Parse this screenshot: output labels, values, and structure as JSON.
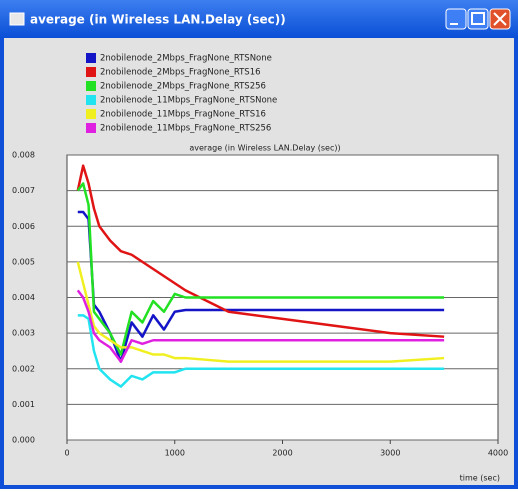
{
  "window_title": "average (in Wireless LAN.Delay (sec))",
  "chart_data": {
    "type": "line",
    "title": "average (in Wireless LAN.Delay (sec))",
    "xlabel": "time (sec)",
    "x": [
      100,
      150,
      200,
      250,
      300,
      400,
      500,
      600,
      700,
      800,
      900,
      1000,
      1100,
      1500,
      2000,
      2500,
      3000,
      3500
    ],
    "series": [
      {
        "name": "2nobilenode_2Mbps_FragNone_RTSNone",
        "color": "#1515c8",
        "values": [
          0.0064,
          0.0064,
          0.0062,
          0.0038,
          0.0036,
          0.003,
          0.0022,
          0.0033,
          0.0029,
          0.0035,
          0.0031,
          0.0036,
          0.00365,
          0.00365,
          0.00365,
          0.00365,
          0.00365,
          0.00365
        ]
      },
      {
        "name": "2nobilenode_2Mbps_FragNone_RTS16",
        "color": "#e01414",
        "values": [
          0.007,
          0.0077,
          0.0072,
          0.0065,
          0.006,
          0.0056,
          0.0053,
          0.0052,
          0.005,
          0.0048,
          0.0046,
          0.0044,
          0.0042,
          0.0036,
          0.0034,
          0.0032,
          0.003,
          0.0029
        ]
      },
      {
        "name": "2nobilenode_2Mbps_FragNone_RTS256",
        "color": "#22e022",
        "values": [
          0.007,
          0.0072,
          0.0066,
          0.0036,
          0.0034,
          0.003,
          0.0024,
          0.0036,
          0.0033,
          0.0039,
          0.0036,
          0.0041,
          0.004,
          0.004,
          0.004,
          0.004,
          0.004,
          0.004
        ]
      },
      {
        "name": "2nobilenode_11Mbps_FragNone_RTSNone",
        "color": "#22e4f0",
        "values": [
          0.0035,
          0.0035,
          0.0034,
          0.0025,
          0.002,
          0.0017,
          0.0015,
          0.0018,
          0.0017,
          0.0019,
          0.0019,
          0.0019,
          0.002,
          0.002,
          0.002,
          0.002,
          0.002,
          0.002
        ]
      },
      {
        "name": "2nobilenode_11Mbps_FragNone_RTS16",
        "color": "#f0f020",
        "values": [
          0.005,
          0.0044,
          0.0038,
          0.0032,
          0.003,
          0.0028,
          0.0026,
          0.0026,
          0.0025,
          0.0024,
          0.0024,
          0.0023,
          0.0023,
          0.0022,
          0.0022,
          0.0022,
          0.0022,
          0.0023
        ]
      },
      {
        "name": "2nobilenode_11Mbps_FragNone_RTS256",
        "color": "#e020e0",
        "values": [
          0.0042,
          0.004,
          0.0036,
          0.003,
          0.0028,
          0.0026,
          0.0022,
          0.0028,
          0.0027,
          0.0028,
          0.0028,
          0.0028,
          0.0028,
          0.0028,
          0.0028,
          0.0028,
          0.0028,
          0.0028
        ]
      }
    ],
    "xlim": [
      0,
      4000
    ],
    "xticks": [
      0,
      1000,
      2000,
      3000,
      4000
    ],
    "ylim": [
      0,
      0.008
    ],
    "yticks": [
      {
        "value": 0,
        "label": "0.000"
      },
      0.001,
      0.002,
      0.003,
      0.004,
      0.005,
      0.006,
      0.007,
      0.008
    ],
    "grid": true
  }
}
